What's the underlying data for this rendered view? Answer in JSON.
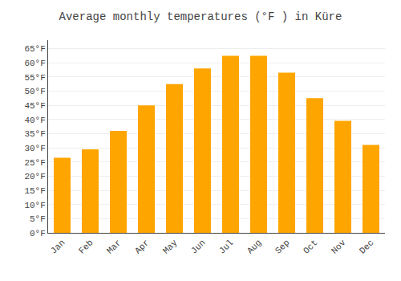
{
  "chart_data": {
    "type": "bar",
    "title": "Average monthly temperatures (°F ) in Küre",
    "categories": [
      "Jan",
      "Feb",
      "Mar",
      "Apr",
      "May",
      "Jun",
      "Jul",
      "Aug",
      "Sep",
      "Oct",
      "Nov",
      "Dec"
    ],
    "values": [
      26.5,
      29.5,
      36.0,
      45.0,
      52.5,
      58.0,
      62.5,
      62.5,
      56.5,
      47.5,
      39.5,
      31.0
    ],
    "color": "#FFA500",
    "ylim": [
      0,
      68
    ],
    "yticks": [
      {
        "value": 0,
        "label": "0°F"
      },
      {
        "value": 5,
        "label": "5°F"
      },
      {
        "value": 10,
        "label": "10°F"
      },
      {
        "value": 15,
        "label": "15°F"
      },
      {
        "value": 20,
        "label": "20°F"
      },
      {
        "value": 25,
        "label": "25°F"
      },
      {
        "value": 30,
        "label": "30°F"
      },
      {
        "value": 35,
        "label": "35°F"
      },
      {
        "value": 40,
        "label": "40°F"
      },
      {
        "value": 45,
        "label": "45°F"
      },
      {
        "value": 50,
        "label": "50°F"
      },
      {
        "value": 55,
        "label": "55°F"
      },
      {
        "value": 60,
        "label": "60°F"
      },
      {
        "value": 65,
        "label": "65°F"
      }
    ],
    "grid": true
  }
}
